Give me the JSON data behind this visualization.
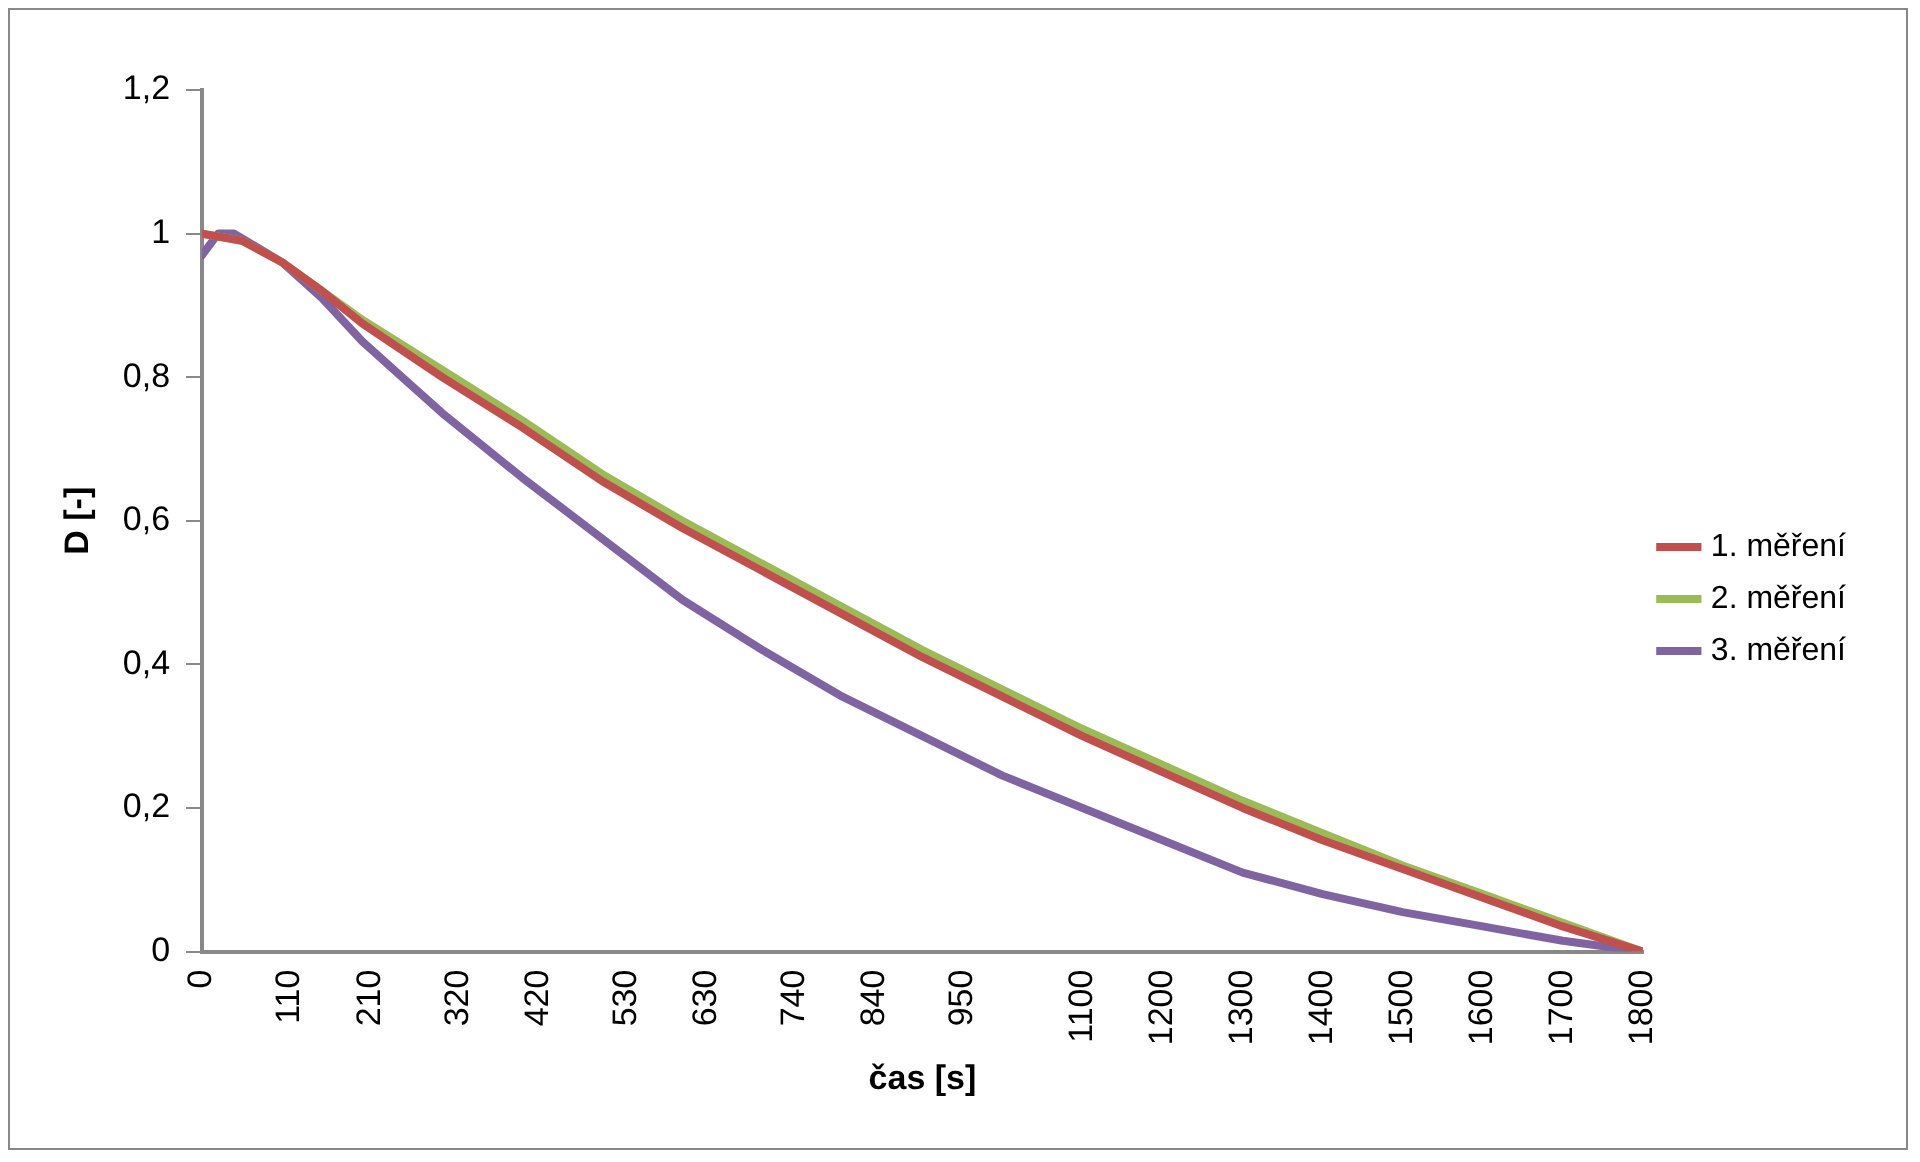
{
  "chart_data": {
    "type": "line",
    "xlabel": "čas [s]",
    "ylabel": "D [-]",
    "legend": "right",
    "grid": false,
    "marker": "none",
    "line_style": "solid",
    "xlim": [
      0,
      1800
    ],
    "xticks": [
      0,
      110,
      210,
      320,
      420,
      530,
      630,
      740,
      840,
      950,
      1100,
      1200,
      1300,
      1400,
      1500,
      1600,
      1700,
      1800
    ],
    "ylim": [
      0,
      1.2
    ],
    "yticks": [
      0,
      {
        "value": 0.2,
        "label": "0,2"
      },
      {
        "value": 0.4,
        "label": "0,4"
      },
      {
        "value": 0.6,
        "label": "0,6"
      },
      {
        "value": 0.8,
        "label": "0,8"
      },
      1,
      {
        "value": 1.2,
        "label": "1,2"
      }
    ],
    "series": [
      {
        "name": "1. měření",
        "color": "#c0504d",
        "x": [
          0,
          50,
          100,
          150,
          200,
          300,
          400,
          500,
          600,
          700,
          800,
          900,
          1000,
          1100,
          1200,
          1300,
          1400,
          1500,
          1600,
          1700,
          1800
        ],
        "values": [
          1,
          0.99,
          0.96,
          0.92,
          0.875,
          0.8,
          0.73,
          0.655,
          0.59,
          0.53,
          0.47,
          0.41,
          0.355,
          0.3,
          0.25,
          0.2,
          0.155,
          0.115,
          0.075,
          0.035,
          0
        ]
      },
      {
        "name": "2. měření",
        "color": "#9bbb59",
        "x": [
          0,
          50,
          100,
          150,
          200,
          300,
          400,
          500,
          600,
          700,
          800,
          900,
          1000,
          1100,
          1200,
          1300,
          1400,
          1500,
          1600,
          1700,
          1800
        ],
        "values": [
          1,
          0.99,
          0.96,
          0.92,
          0.88,
          0.81,
          0.74,
          0.665,
          0.6,
          0.54,
          0.48,
          0.42,
          0.365,
          0.31,
          0.26,
          0.21,
          0.165,
          0.12,
          0.08,
          0.04,
          0
        ]
      },
      {
        "name": "3. měření",
        "color": "#8064a2",
        "x": [
          0,
          20,
          40,
          100,
          150,
          200,
          250,
          300,
          400,
          500,
          600,
          700,
          800,
          900,
          1000,
          1100,
          1200,
          1300,
          1400,
          1500,
          1600,
          1700,
          1800
        ],
        "values": [
          0.97,
          1,
          1,
          0.96,
          0.91,
          0.85,
          0.8,
          0.75,
          0.66,
          0.575,
          0.49,
          0.42,
          0.355,
          0.3,
          0.245,
          0.2,
          0.155,
          0.11,
          0.08,
          0.055,
          0.035,
          0.015,
          0
        ]
      }
    ]
  }
}
